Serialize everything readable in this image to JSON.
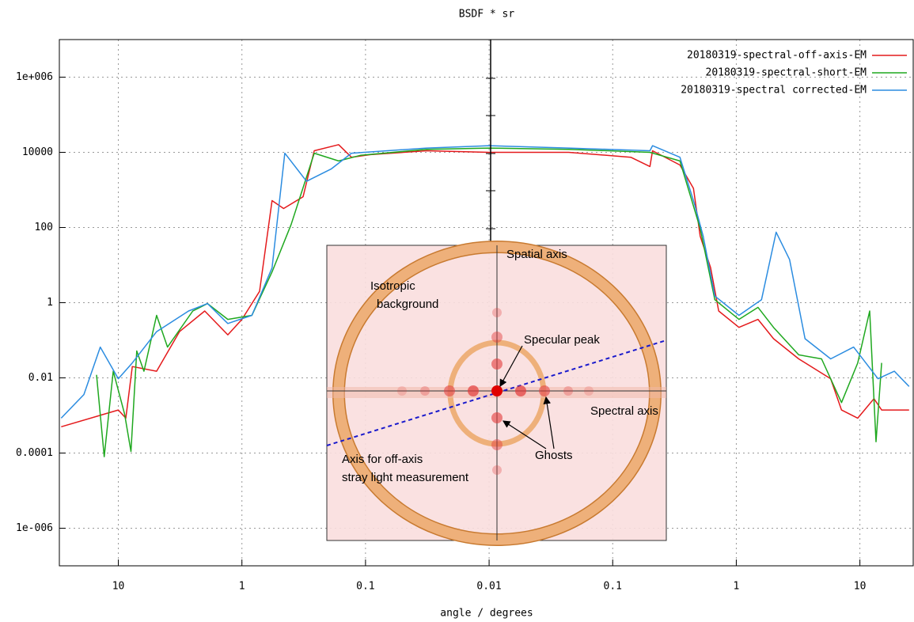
{
  "chart_data": {
    "type": "line",
    "title": "BSDF * sr",
    "x_label": "angle / degrees",
    "xscale": "mirrored-log",
    "yscale": "log",
    "grid": true,
    "legend": "top-right",
    "xlim": [
      -30,
      27
    ],
    "ylim": [
      1e-07,
      10000000.0
    ],
    "xticks": [
      {
        "value": -10,
        "label": "10"
      },
      {
        "value": -1,
        "label": "1"
      },
      {
        "value": -0.1,
        "label": "0.1"
      },
      0.01,
      0.1,
      1,
      10
    ],
    "yticks": [
      {
        "value": 1000000,
        "label": "1e+006"
      },
      10000,
      100,
      1,
      0.01,
      0.0001,
      {
        "value": 1e-06,
        "label": "1e-006"
      }
    ],
    "series": [
      {
        "name": "20180319-spectral-off-axis-EM",
        "color": "#e41a1c",
        "x": [
          -29,
          -10,
          -8.7,
          -7.7,
          -4.9,
          -3.2,
          -2,
          -1.3,
          -1,
          -0.72,
          -0.57,
          -0.46,
          -0.32,
          -0.26,
          -0.165,
          -0.13,
          -0.091,
          -0.032,
          0.01,
          0.044,
          0.14,
          0.2,
          0.21,
          0.35,
          0.45,
          0.51,
          0.62,
          0.72,
          1.05,
          1.5,
          2,
          3.2,
          5.8,
          7.1,
          9.6,
          13,
          15,
          25
        ],
        "values": [
          0.0005,
          0.0014,
          0.00085,
          0.02,
          0.015,
          0.17,
          0.6,
          0.14,
          0.36,
          2,
          520,
          320,
          660,
          11000,
          16000,
          7400,
          8700,
          11000,
          10000,
          10000,
          7400,
          4200,
          11000,
          4600,
          1100,
          59,
          8.5,
          0.6,
          0.22,
          0.36,
          0.11,
          0.032,
          0.0095,
          0.0014,
          0.00085,
          0.0028,
          0.0014,
          0.0014
        ]
      },
      {
        "name": "20180319-spectral-short-EM",
        "color": "#1fa81f",
        "x": [
          -15,
          -13,
          -11,
          -8.9,
          -7.9,
          -7.1,
          -6.2,
          -4.9,
          -4,
          -2.5,
          -1.9,
          -1.3,
          -0.83,
          -0.57,
          -0.4,
          -0.26,
          -0.165,
          -0.11,
          -0.032,
          0.01,
          0.044,
          0.2,
          0.35,
          0.51,
          0.67,
          1.05,
          1.5,
          2,
          3.2,
          4.9,
          7.1,
          9.6,
          12,
          13.5,
          15
        ],
        "values": [
          0.012,
          8e-05,
          0.015,
          0.0011,
          0.00011,
          0.052,
          0.015,
          0.46,
          0.066,
          0.6,
          0.95,
          0.36,
          0.46,
          6.6,
          120,
          9500,
          5900,
          8300,
          12000,
          13000,
          12000,
          10000,
          5900,
          95,
          1.2,
          0.36,
          0.75,
          0.22,
          0.041,
          0.032,
          0.0022,
          0.025,
          0.6,
          0.0002,
          0.025
        ]
      },
      {
        "name": "20180319-spectral corrected-EM",
        "color": "#2b8ce0",
        "x": [
          -29,
          -19,
          -14,
          -10,
          -7.7,
          -4.9,
          -2.7,
          -1.9,
          -1.3,
          -0.83,
          -0.57,
          -0.45,
          -0.3,
          -0.19,
          -0.13,
          -0.032,
          0.01,
          0.044,
          0.2,
          0.21,
          0.35,
          0.46,
          0.54,
          0.67,
          1.05,
          1.6,
          2.1,
          2.7,
          3.6,
          5.8,
          8.9,
          14,
          19,
          25
        ],
        "values": [
          0.00085,
          0.0036,
          0.066,
          0.0095,
          0.025,
          0.17,
          0.6,
          0.95,
          0.28,
          0.46,
          8.5,
          9500,
          1700,
          3600,
          9500,
          13000,
          15000,
          13000,
          11000,
          15000,
          7400,
          410,
          59,
          1.5,
          0.46,
          1.2,
          75,
          14,
          0.11,
          0.032,
          0.066,
          0.0095,
          0.015,
          0.0059
        ]
      }
    ],
    "annotations": [
      "Spatial axis",
      "Isotropic",
      "background",
      "Specular peak",
      "Spectral axis",
      "Ghosts",
      "Axis for off-axis",
      "stray light measurement"
    ]
  }
}
